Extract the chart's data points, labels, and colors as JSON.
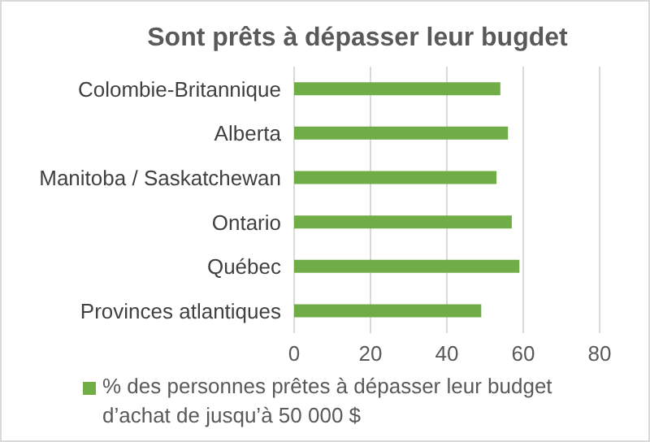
{
  "chart_data": {
    "type": "bar",
    "orientation": "horizontal",
    "title": "Sont prêts à dépasser leur bugdet",
    "categories": [
      "Colombie-Britannique",
      "Alberta",
      "Manitoba / Saskatchewan",
      "Ontario",
      "Québec",
      "Provinces atlantiques"
    ],
    "series": [
      {
        "name": "% des personnes prêtes à dépasser leur budget d’achat de jusqu’à 50 000 $",
        "color": "#70ad47",
        "values": [
          54,
          56,
          53,
          57,
          59,
          49
        ]
      }
    ],
    "xlim": [
      0,
      80
    ],
    "xticks": [
      0,
      20,
      40,
      60,
      80
    ],
    "grid": "x",
    "legend": "bottom"
  }
}
